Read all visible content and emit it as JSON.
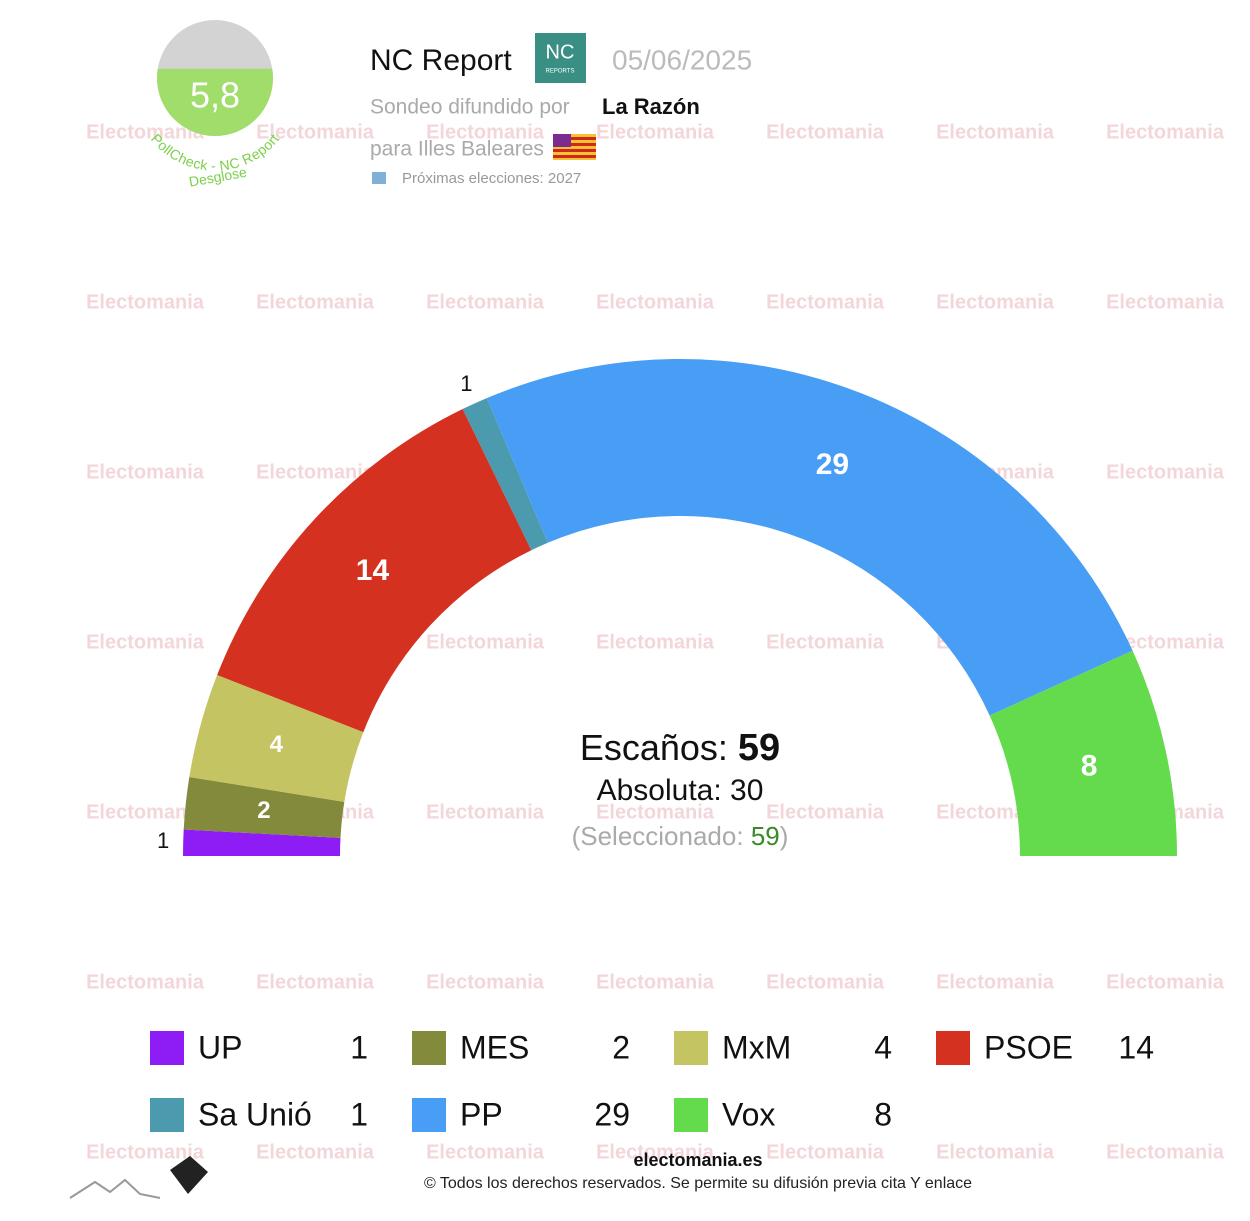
{
  "header": {
    "pollster": "NC Report",
    "logo_text": "NC",
    "logo_subtext": "REPORTS",
    "date": "05/06/2025",
    "published_by_label": "Sondeo difundido por",
    "published_by": "La Razón",
    "region": "para Illes Baleares",
    "next_election": "Próximas elecciones: 2027"
  },
  "score": {
    "value": {
      "value": 5.8,
      "label": "5,8"
    },
    "lim": [
      0,
      10
    ],
    "caption": "PollCheck - NC Report",
    "link": "Desglose"
  },
  "watermark": "Electomania",
  "chart_data": {
    "type": "parliament",
    "categories": [
      "UP",
      "MES",
      "MxM",
      "PSOE",
      "Sa Unió",
      "PP",
      "Vox"
    ],
    "values": [
      1,
      2,
      4,
      14,
      1,
      29,
      8
    ],
    "colors": [
      "#8e1cf5",
      "#848a3c",
      "#c5c462",
      "#d53120",
      "#4b9aad",
      "#489ef5",
      "#64db4d"
    ],
    "total_label": "Escaños:",
    "total": 59,
    "majority_label": "Absoluta:",
    "majority": 30,
    "selected_label": "(Seleccionado:",
    "selected": 59,
    "selected_close": ")"
  },
  "footer": {
    "site": "electomania.es",
    "rights": "© Todos los derechos reservados. Se permite su difusión previa cita Y enlace"
  }
}
